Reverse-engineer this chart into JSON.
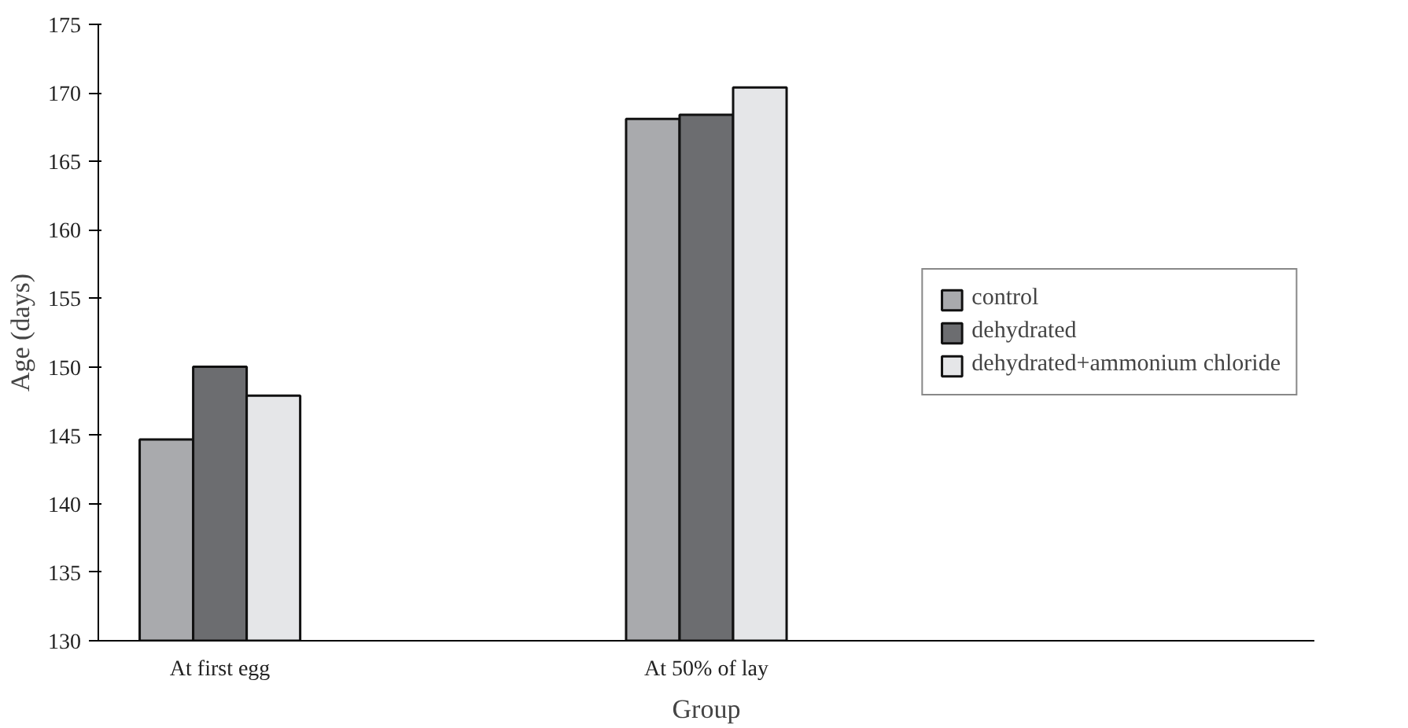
{
  "chart_data": {
    "type": "bar",
    "xlabel": "Group",
    "ylabel": "Age (days)",
    "categories": [
      "At first egg",
      null,
      "At 50% of lay",
      null,
      null
    ],
    "series": [
      {
        "name": "control",
        "color": "#a9aaad",
        "values": [
          144.7,
          null,
          168.1,
          null,
          null
        ]
      },
      {
        "name": "dehydrated",
        "color": "#6c6d70",
        "values": [
          150.0,
          null,
          168.4,
          null,
          null
        ]
      },
      {
        "name": "dehydrated+ammonium chloride",
        "color": "#e5e6e8",
        "values": [
          147.9,
          null,
          170.4,
          null,
          null
        ]
      }
    ],
    "ylim": [
      130,
      175
    ],
    "yticks": [
      130,
      135,
      140,
      145,
      150,
      155,
      160,
      165,
      170,
      175
    ],
    "grid": false,
    "legend": "right"
  }
}
